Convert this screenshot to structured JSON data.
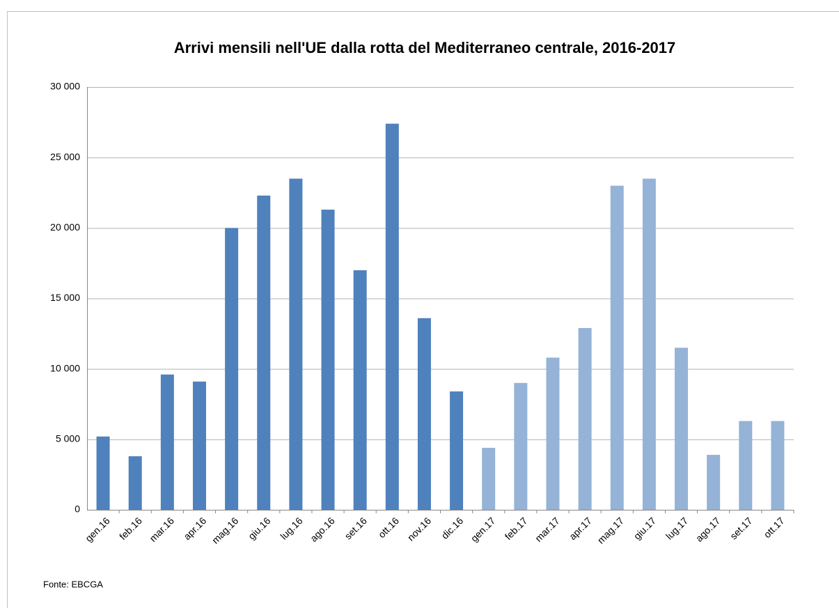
{
  "chart_data": {
    "type": "bar",
    "title": "Arrivi mensili nell'UE dalla rotta del Mediterraneo centrale, 2016-2017",
    "source": "Fonte: EBCGA",
    "categories": [
      "gen.16",
      "feb.16",
      "mar.16",
      "apr.16",
      "mag.16",
      "giu.16",
      "lug.16",
      "ago.16",
      "set.16",
      "ott.16",
      "nov.16",
      "dic.16",
      "gen.17",
      "feb.17",
      "mar.17",
      "apr.17",
      "mag.17",
      "giu.17",
      "lug.17",
      "ago.17",
      "set.17",
      "ott.17"
    ],
    "values": [
      5200,
      3800,
      9600,
      9100,
      20000,
      22300,
      23500,
      21300,
      17000,
      27400,
      13600,
      8400,
      4400,
      9000,
      10800,
      12900,
      23000,
      23500,
      11500,
      3900,
      6300,
      6300
    ],
    "colors": [
      "#4f81bd",
      "#4f81bd",
      "#4f81bd",
      "#4f81bd",
      "#4f81bd",
      "#4f81bd",
      "#4f81bd",
      "#4f81bd",
      "#4f81bd",
      "#4f81bd",
      "#4f81bd",
      "#4f81bd",
      "#95b3d7",
      "#95b3d7",
      "#95b3d7",
      "#95b3d7",
      "#95b3d7",
      "#95b3d7",
      "#95b3d7",
      "#95b3d7",
      "#95b3d7",
      "#95b3d7"
    ],
    "ylim": [
      0,
      30000
    ],
    "yticks": [
      0,
      {
        "value": 5000,
        "label": "5 000"
      },
      {
        "value": 10000,
        "label": "10 000"
      },
      {
        "value": 15000,
        "label": "15 000"
      },
      {
        "value": 20000,
        "label": "20 000"
      },
      {
        "value": 25000,
        "label": "25 000"
      },
      {
        "value": 30000,
        "label": "30 000"
      }
    ],
    "grid": true
  }
}
